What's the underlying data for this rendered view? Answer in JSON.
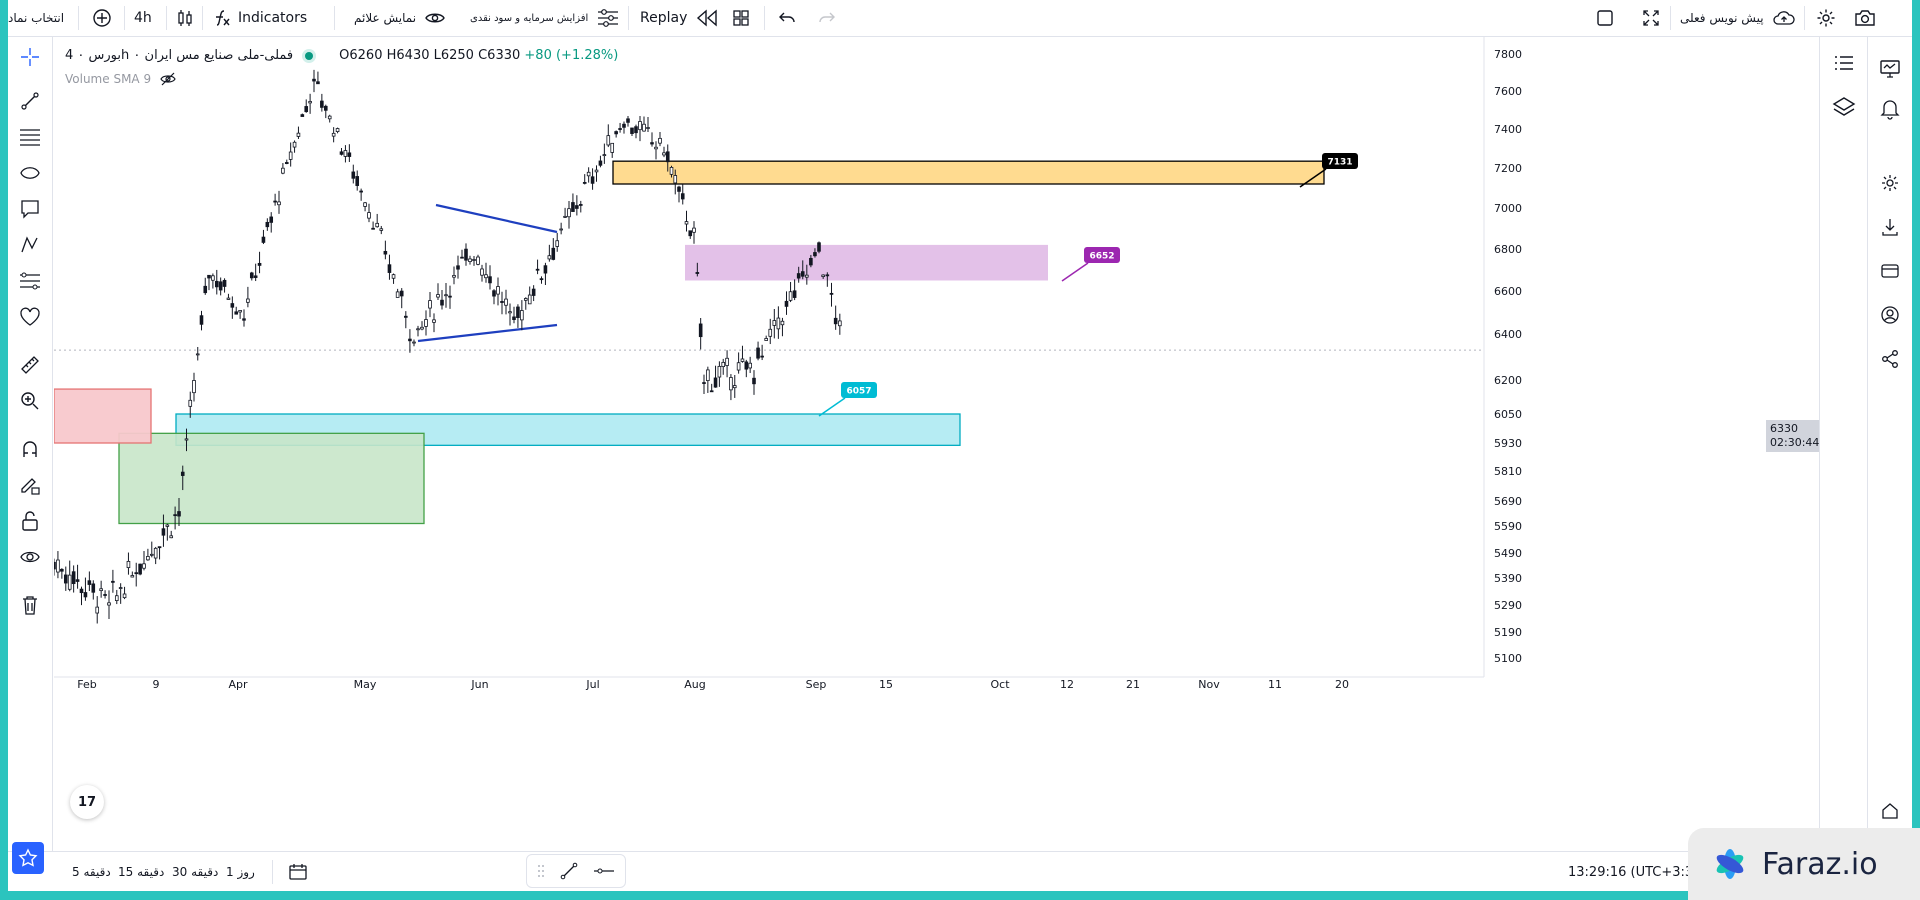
{
  "topbar": {
    "symbol_search": "انتخاب نماد",
    "interval": "4h",
    "indicators": "Indicators",
    "show_signals": "نمایش علائم",
    "profit_calc": "افزایش سرمایه و سود نقدی",
    "replay": "Replay",
    "pre_market": "پیش نویس فعلی"
  },
  "legend": {
    "title": "بورس ۰ 4h ۰ فملی-ملی صنایع مس ایران",
    "open": "O6260",
    "high": "H6430",
    "low": "L6250",
    "close": "C6330",
    "change": "+80 (+1.28%)",
    "volume_label": "Volume SMA 9"
  },
  "price_box": {
    "price": "6330",
    "countdown": "02:30:44"
  },
  "bottombar": {
    "range_5m": "5 دقیقه",
    "range_15m": "15 دقیقه",
    "range_30m": "30 دقیقه",
    "range_1d": "1 روز",
    "clock": "13:29:16 (UTC+3:30)"
  },
  "watermark": "Faraz.io",
  "tv_logo": "17",
  "colors": {
    "background": "#2bc4be",
    "up": "#089981",
    "supply_zone": "#ffd98a",
    "pink_zone": "#e1bee7",
    "cyan_zone": "#b2ebf2",
    "green_zone": "#c8e6c9",
    "red_zone": "#f8c8cc",
    "triangle": "#1e3fbf"
  },
  "chart_data": {
    "type": "candlestick",
    "instrument": "فملی",
    "timeframe": "4h",
    "x_tick_labels": [
      "Feb",
      "9",
      "Apr",
      "May",
      "Jun",
      "Jul",
      "Aug",
      "Sep",
      "15",
      "Oct",
      "12",
      "21",
      "Nov",
      "11",
      "20"
    ],
    "y_tick_labels": [
      "7800",
      "7600",
      "7400",
      "7200",
      "7000",
      "6800",
      "6600",
      "6400",
      "6200",
      "6050",
      "5930",
      "5810",
      "5690",
      "5590",
      "5490",
      "5390",
      "5290",
      "5190",
      "5100"
    ],
    "last_price": 6330,
    "price_path": [
      {
        "x": "Feb",
        "y": 5450
      },
      {
        "x": "9",
        "y": 5290
      },
      {
        "x": "Mar",
        "y": 5650
      },
      {
        "x": "Apr",
        "y": 6700
      },
      {
        "x": "Apr",
        "y": 6500
      },
      {
        "x": "May",
        "y": 7650
      },
      {
        "x": "May",
        "y": 7000
      },
      {
        "x": "May",
        "y": 6380
      },
      {
        "x": "Jun",
        "y": 6800
      },
      {
        "x": "Jun",
        "y": 6450
      },
      {
        "x": "Jul",
        "y": 6950
      },
      {
        "x": "Jul",
        "y": 7450
      },
      {
        "x": "Jul",
        "y": 7300
      },
      {
        "x": "Aug",
        "y": 6850
      },
      {
        "x": "Aug",
        "y": 6200
      },
      {
        "x": "Aug",
        "y": 6250
      },
      {
        "x": "Sep",
        "y": 6800
      },
      {
        "x": "Sep",
        "y": 6330
      }
    ],
    "labels": [
      {
        "text": "7131",
        "color": "#000000"
      },
      {
        "text": "6652",
        "color": "#9c27b0"
      },
      {
        "text": "6057",
        "color": "#00bcd4"
      }
    ],
    "zones": [
      {
        "name": "supply",
        "y_top": 7235,
        "y_bottom": 7120,
        "color": "#ffd98a"
      },
      {
        "name": "pink",
        "y_top": 6820,
        "y_bottom": 6650,
        "color": "#e1bee7"
      },
      {
        "name": "cyan",
        "y_top": 6050,
        "y_bottom": 5920,
        "color": "#b2ebf2"
      },
      {
        "name": "green",
        "y_top": 5970,
        "y_bottom": 5600,
        "color": "#c8e6c9"
      },
      {
        "name": "red",
        "y_top": 6160,
        "y_bottom": 5930,
        "color": "#f8c8cc"
      }
    ]
  }
}
